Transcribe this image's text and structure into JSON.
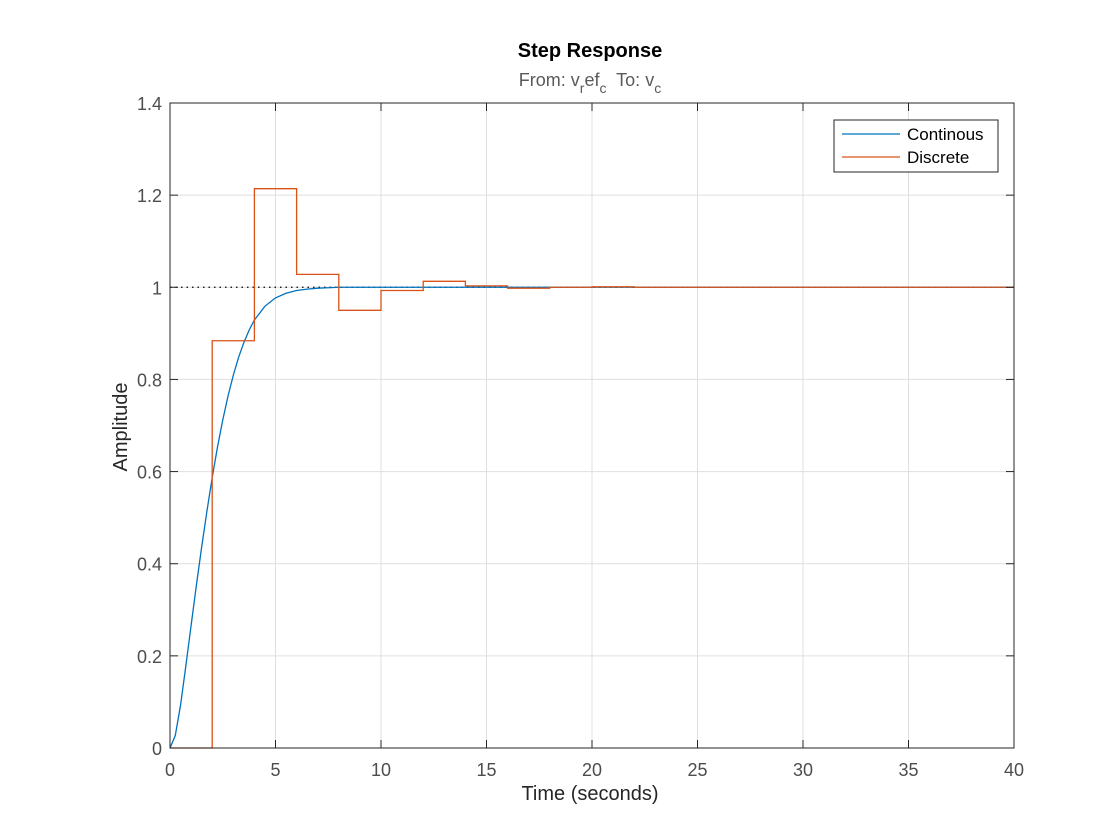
{
  "chart_data": {
    "type": "line",
    "title": "Step Response",
    "subtitle": {
      "from_label": "From: ",
      "from_base": "v",
      "from_sub1": "r",
      "from_mid": "ef",
      "from_sub2": "c",
      "to_label": "  To: ",
      "to_base": "v",
      "to_sub": "c"
    },
    "xlabel": "Time (seconds)",
    "ylabel": "Amplitude",
    "xlim": [
      0,
      40
    ],
    "ylim": [
      0,
      1.4
    ],
    "xticks": [
      0,
      5,
      10,
      15,
      20,
      25,
      30,
      35,
      40
    ],
    "yticks": [
      0,
      0.2,
      0.4,
      0.6,
      0.8,
      1,
      1.2,
      1.4
    ],
    "xtick_labels": [
      "0",
      "5",
      "10",
      "15",
      "20",
      "25",
      "30",
      "35",
      "40"
    ],
    "ytick_labels": [
      "0",
      "0.2",
      "0.4",
      "0.6",
      "0.8",
      "1",
      "1.2",
      "1.4"
    ],
    "grid": true,
    "legend_position": "top-right",
    "reference_line": {
      "y": 1,
      "style": "dotted"
    },
    "series": [
      {
        "name": "Continous",
        "color": "#0072BD",
        "style": "smooth",
        "x": [
          0,
          0.25,
          0.5,
          0.75,
          1,
          1.25,
          1.5,
          1.75,
          2,
          2.25,
          2.5,
          2.75,
          3,
          3.25,
          3.5,
          3.75,
          4,
          4.5,
          5,
          5.5,
          6,
          6.5,
          7,
          7.5,
          8,
          9,
          10,
          12,
          14,
          16,
          18,
          20,
          25,
          30,
          35,
          40
        ],
        "y": [
          0,
          0.027,
          0.093,
          0.178,
          0.266,
          0.353,
          0.436,
          0.514,
          0.587,
          0.653,
          0.712,
          0.764,
          0.809,
          0.848,
          0.88,
          0.907,
          0.929,
          0.959,
          0.977,
          0.987,
          0.993,
          0.996,
          0.998,
          0.999,
          1.0,
          1.0,
          1.0,
          1.0,
          1.0,
          1.0,
          1.0,
          1.0,
          1.0,
          1.0,
          1.0,
          1.0
        ]
      },
      {
        "name": "Discrete",
        "color": "#D95319",
        "style": "stairs",
        "x": [
          0,
          2,
          4,
          6,
          8,
          10,
          12,
          14,
          16,
          18,
          20,
          22,
          24,
          40
        ],
        "y": [
          0,
          0.884,
          1.214,
          1.028,
          0.95,
          0.993,
          1.013,
          1.003,
          0.998,
          1.0,
          1.001,
          1.0,
          1.0,
          1.0
        ]
      }
    ]
  }
}
